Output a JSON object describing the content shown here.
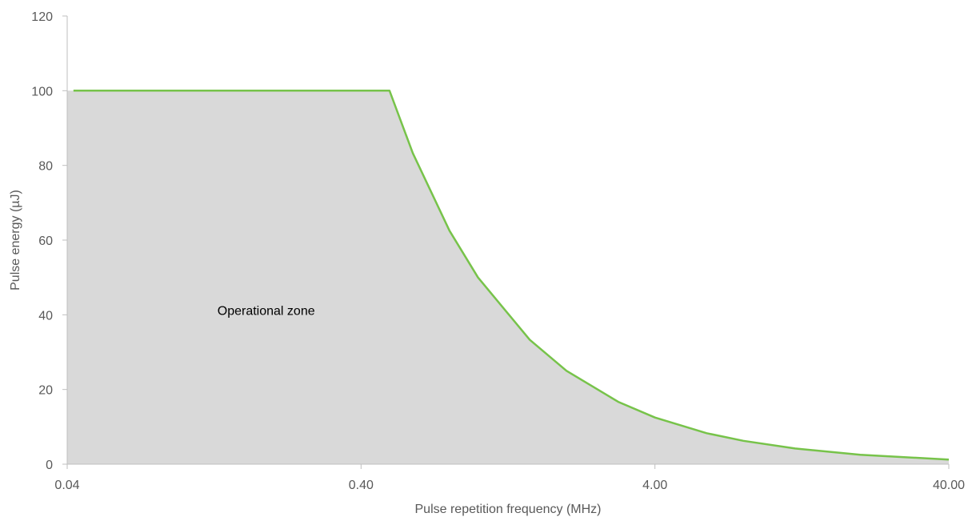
{
  "chart_data": {
    "type": "area",
    "xlabel": "Pulse repetition frequency (MHz)",
    "ylabel": "Pulse energy (µJ)",
    "x_scale": "log",
    "xlim": [
      0.04,
      40.0
    ],
    "ylim": [
      0,
      120
    ],
    "x_ticks": [
      "0.04",
      "0.40",
      "4.00",
      "40.00"
    ],
    "y_ticks": [
      "0",
      "20",
      "40",
      "60",
      "80",
      "100",
      "120"
    ],
    "grid": false,
    "legend": "none",
    "annotations": [
      {
        "text": "Operational zone",
        "x": 0.2,
        "y": 41
      }
    ],
    "series": [
      {
        "x": [
          0.042,
          0.5,
          0.6,
          0.8,
          1.0,
          1.5,
          2.0,
          3.0,
          4.0,
          6.0,
          8.0,
          12.0,
          20.0,
          40.0
        ],
        "values": [
          100,
          100,
          83.3,
          62.5,
          50,
          33.3,
          25,
          16.7,
          12.5,
          8.3,
          6.25,
          4.2,
          2.5,
          1.25
        ]
      }
    ],
    "colors": {
      "line": "#77c34a",
      "fill": "#d9d9d9",
      "axis": "#bfbfbf",
      "text": "#595959"
    }
  }
}
